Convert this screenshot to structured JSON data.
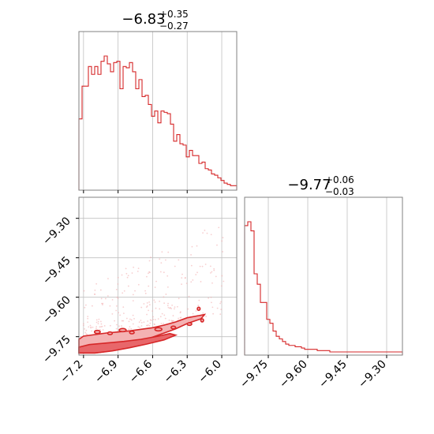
{
  "chart_data": [
    {
      "type": "histogram",
      "panel": "top-left marginal",
      "title": {
        "value": "−6.83",
        "plus": "+0.35",
        "minus": "−0.27"
      },
      "xlim": [
        -7.24,
        -5.87
      ],
      "bin_edges_start": -7.24,
      "bin_width": 0.0274,
      "counts": [
        0.52,
        0.77,
        0.77,
        0.92,
        0.86,
        0.92,
        0.86,
        0.96,
        1.0,
        0.94,
        0.88,
        0.95,
        0.96,
        0.75,
        0.92,
        0.91,
        0.95,
        0.88,
        0.75,
        0.82,
        0.69,
        0.7,
        0.63,
        0.54,
        0.58,
        0.49,
        0.58,
        0.57,
        0.56,
        0.48,
        0.35,
        0.4,
        0.33,
        0.32,
        0.23,
        0.28,
        0.24,
        0.24,
        0.18,
        0.19,
        0.14,
        0.13,
        0.1,
        0.09,
        0.07,
        0.05,
        0.03,
        0.02,
        0.01,
        0.01
      ],
      "color": "#d62728",
      "xticks": [
        -7.2,
        -6.9,
        -6.6,
        -6.3,
        -6.0
      ],
      "grid": true
    },
    {
      "type": "histogram",
      "panel": "bottom-right marginal",
      "title": {
        "value": "−9.77",
        "plus": "+0.06",
        "minus": "−0.03"
      },
      "xlim": [
        -9.84,
        -9.24
      ],
      "bin_edges_start": -9.84,
      "bin_width": 0.012,
      "counts": [
        0.97,
        1.0,
        0.93,
        0.6,
        0.52,
        0.38,
        0.38,
        0.25,
        0.22,
        0.16,
        0.12,
        0.1,
        0.08,
        0.06,
        0.05,
        0.05,
        0.04,
        0.04,
        0.03,
        0.02,
        0.02,
        0.02,
        0.02,
        0.01,
        0.01,
        0.01,
        0.01,
        0.0,
        0.0,
        0.0,
        0.0,
        0.0,
        0.0,
        0.0,
        0.0,
        0.0,
        0.0,
        0.0,
        0.0,
        0.0,
        0.0,
        0.0,
        0.0,
        0.0,
        0.0,
        0.0,
        0.0,
        0.0,
        0.0,
        0.0
      ],
      "color": "#d62728",
      "xticks": [
        -9.75,
        -9.6,
        -9.45,
        -9.3
      ],
      "xtick_labels": [
        "−9.75",
        "−9.60",
        "−9.45",
        "−9.30"
      ],
      "grid": true
    },
    {
      "type": "contour",
      "panel": "bottom-left joint",
      "xlim": [
        -7.24,
        -5.87
      ],
      "ylim": [
        -9.82,
        -9.22
      ],
      "xticks": [
        -7.2,
        -6.9,
        -6.6,
        -6.3,
        -6.0
      ],
      "xtick_labels": [
        "−7.2",
        "−6.9",
        "−6.6",
        "−6.3",
        "−6.0"
      ],
      "yticks": [
        -9.3,
        -9.45,
        -9.6,
        -9.75
      ],
      "ytick_labels": [
        "−9.30",
        "−9.45",
        "−9.60",
        "−9.75"
      ],
      "color": "#d62728",
      "fill_color": "#f4b2b3",
      "grid": true,
      "outer_contour": [
        [
          -7.24,
          -9.812
        ],
        [
          -7.24,
          -9.76
        ],
        [
          -7.2,
          -9.748
        ],
        [
          -7.1,
          -9.742
        ],
        [
          -7.0,
          -9.736
        ],
        [
          -6.9,
          -9.732
        ],
        [
          -6.8,
          -9.728
        ],
        [
          -6.7,
          -9.722
        ],
        [
          -6.6,
          -9.716
        ],
        [
          -6.5,
          -9.706
        ],
        [
          -6.4,
          -9.694
        ],
        [
          -6.3,
          -9.678
        ],
        [
          -6.2,
          -9.67
        ],
        [
          -6.15,
          -9.666
        ],
        [
          -6.18,
          -9.682
        ],
        [
          -6.3,
          -9.7
        ],
        [
          -6.4,
          -9.72
        ],
        [
          -6.5,
          -9.736
        ],
        [
          -6.6,
          -9.752
        ],
        [
          -6.7,
          -9.768
        ],
        [
          -6.8,
          -9.782
        ],
        [
          -6.9,
          -9.795
        ],
        [
          -7.0,
          -9.806
        ],
        [
          -7.1,
          -9.812
        ]
      ],
      "inner_contour": [
        [
          -7.24,
          -9.812
        ],
        [
          -7.24,
          -9.79
        ],
        [
          -7.15,
          -9.78
        ],
        [
          -7.0,
          -9.774
        ],
        [
          -6.85,
          -9.768
        ],
        [
          -6.7,
          -9.76
        ],
        [
          -6.55,
          -9.748
        ],
        [
          -6.45,
          -9.738
        ],
        [
          -6.4,
          -9.744
        ],
        [
          -6.5,
          -9.762
        ],
        [
          -6.65,
          -9.778
        ],
        [
          -6.8,
          -9.792
        ],
        [
          -6.95,
          -9.804
        ],
        [
          -7.1,
          -9.812
        ]
      ],
      "islands": [
        {
          "x": -7.08,
          "y": -9.732,
          "rx": 0.025,
          "ry": 0.006
        },
        {
          "x": -6.97,
          "y": -9.737,
          "rx": 0.02,
          "ry": 0.005
        },
        {
          "x": -6.86,
          "y": -9.725,
          "rx": 0.03,
          "ry": 0.006
        },
        {
          "x": -6.78,
          "y": -9.734,
          "rx": 0.02,
          "ry": 0.005
        },
        {
          "x": -6.55,
          "y": -9.722,
          "rx": 0.03,
          "ry": 0.006
        },
        {
          "x": -6.42,
          "y": -9.715,
          "rx": 0.02,
          "ry": 0.005
        },
        {
          "x": -6.28,
          "y": -9.702,
          "rx": 0.02,
          "ry": 0.005
        },
        {
          "x": -6.17,
          "y": -9.688,
          "rx": 0.012,
          "ry": 0.006
        },
        {
          "x": -6.2,
          "y": -9.644,
          "rx": 0.012,
          "ry": 0.006
        }
      ],
      "scatter_density": "sparse light points above contours, spanning x -7.2 to -5.95 and y -9.75 to -9.4"
    }
  ]
}
